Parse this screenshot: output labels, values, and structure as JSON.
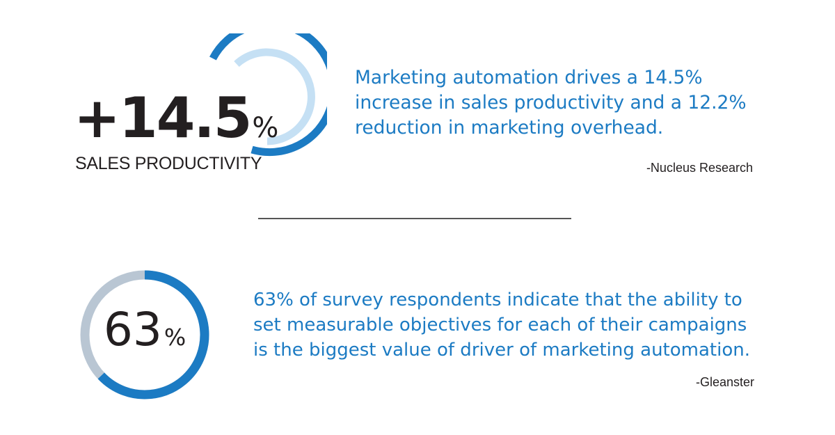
{
  "stat1": {
    "value": "+14.5",
    "percent_sign": "%",
    "label": "SALES PRODUCTIVITY",
    "quote_lines": [
      "Marketing automation drives a 14.5%",
      "increase in sales productivity and a 12.2%",
      "reduction in marketing overhead."
    ],
    "source": "-Nucleus Research"
  },
  "stat2": {
    "value": "63",
    "percent_sign": "%",
    "ring_fraction": 0.63,
    "quote_lines": [
      "63% of survey respondents indicate that the ability to",
      "set measurable objectives for each of their campaigns",
      "is the biggest value of driver of marketing automation."
    ],
    "source": "-Gleanster"
  },
  "colors": {
    "accent_blue": "#1c7bc3",
    "light_blue": "#c5e0f4",
    "gray_track": "#b9c6d3",
    "text_dark": "#231f20"
  }
}
